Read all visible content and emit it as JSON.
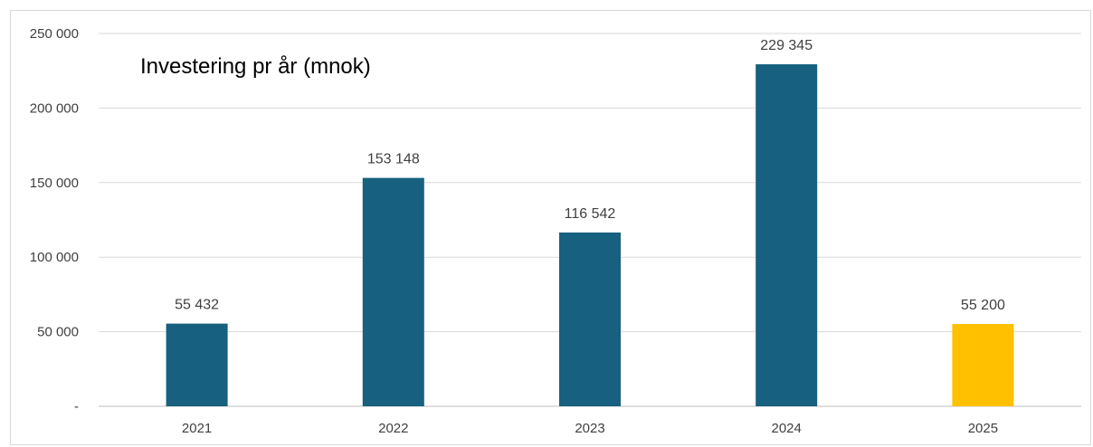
{
  "chart_data": {
    "type": "bar",
    "title": "Investering pr år (mnok)",
    "categories": [
      "2021",
      "2022",
      "2023",
      "2024",
      "2025"
    ],
    "values": [
      55432,
      153148,
      116542,
      229345,
      55200
    ],
    "value_labels": [
      "55 432",
      "153 148",
      "116 542",
      "229 345",
      "55 200"
    ],
    "bar_colors": [
      "#17607f",
      "#17607f",
      "#17607f",
      "#17607f",
      "#ffc000"
    ],
    "ylim": [
      0,
      250000
    ],
    "yticks": [
      0,
      50000,
      100000,
      150000,
      200000,
      250000
    ],
    "ytick_labels": [
      "-",
      "50 000",
      "100 000",
      "150 000",
      "200 000",
      "250 000"
    ],
    "grid": true,
    "xlabel": "",
    "ylabel": ""
  }
}
